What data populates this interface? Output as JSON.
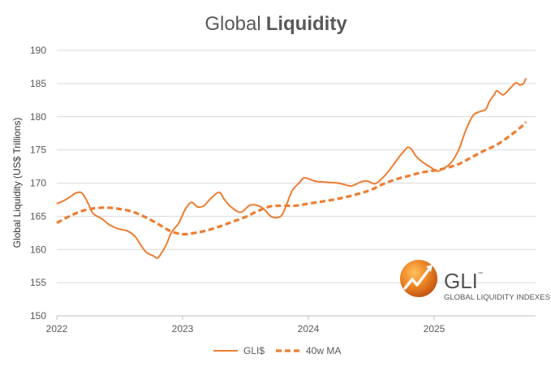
{
  "chart_data": {
    "type": "line",
    "title": {
      "regular": "Global",
      "bold": "Liquidity"
    },
    "ylabel": "Global Liquidity (US$ Trillions)",
    "xlabel": "",
    "ylim": [
      150,
      190
    ],
    "yticks": [
      150,
      155,
      160,
      165,
      170,
      175,
      180,
      185,
      190
    ],
    "xlim": [
      2022.0,
      2026.0
    ],
    "xticks": [
      {
        "value": 2022.0,
        "label": "2022"
      },
      {
        "value": 2023.0,
        "label": "2023"
      },
      {
        "value": 2024.0,
        "label": "2024"
      },
      {
        "value": 2025.0,
        "label": "2025"
      }
    ],
    "grid": "horizontal",
    "legend_position": "bottom",
    "series": [
      {
        "name": "GLI$",
        "color": "#ED7D31",
        "style": "solid",
        "points": [
          [
            2022.0,
            166.9
          ],
          [
            2022.06,
            167.4
          ],
          [
            2022.12,
            168.1
          ],
          [
            2022.15,
            168.5
          ],
          [
            2022.2,
            168.5
          ],
          [
            2022.25,
            166.9
          ],
          [
            2022.29,
            165.4
          ],
          [
            2022.36,
            164.6
          ],
          [
            2022.42,
            163.7
          ],
          [
            2022.49,
            163.1
          ],
          [
            2022.56,
            162.8
          ],
          [
            2022.62,
            162.0
          ],
          [
            2022.66,
            160.9
          ],
          [
            2022.71,
            159.6
          ],
          [
            2022.77,
            159.0
          ],
          [
            2022.8,
            158.7
          ],
          [
            2022.83,
            159.4
          ],
          [
            2022.87,
            160.7
          ],
          [
            2022.91,
            162.5
          ],
          [
            2022.97,
            164.0
          ],
          [
            2023.02,
            166.0
          ],
          [
            2023.07,
            167.1
          ],
          [
            2023.12,
            166.4
          ],
          [
            2023.17,
            166.6
          ],
          [
            2023.22,
            167.6
          ],
          [
            2023.29,
            168.6
          ],
          [
            2023.33,
            167.6
          ],
          [
            2023.38,
            166.5
          ],
          [
            2023.46,
            165.6
          ],
          [
            2023.53,
            166.6
          ],
          [
            2023.58,
            166.7
          ],
          [
            2023.64,
            166.2
          ],
          [
            2023.71,
            164.9
          ],
          [
            2023.78,
            165.0
          ],
          [
            2023.82,
            166.4
          ],
          [
            2023.87,
            168.8
          ],
          [
            2023.93,
            170.1
          ],
          [
            2023.97,
            170.8
          ],
          [
            2024.05,
            170.3
          ],
          [
            2024.1,
            170.2
          ],
          [
            2024.17,
            170.1
          ],
          [
            2024.24,
            170.0
          ],
          [
            2024.3,
            169.7
          ],
          [
            2024.35,
            169.6
          ],
          [
            2024.42,
            170.2
          ],
          [
            2024.47,
            170.3
          ],
          [
            2024.53,
            169.9
          ],
          [
            2024.58,
            170.6
          ],
          [
            2024.62,
            171.4
          ],
          [
            2024.67,
            172.6
          ],
          [
            2024.72,
            173.9
          ],
          [
            2024.76,
            174.8
          ],
          [
            2024.79,
            175.4
          ],
          [
            2024.82,
            175.1
          ],
          [
            2024.85,
            174.2
          ],
          [
            2024.88,
            173.6
          ],
          [
            2024.92,
            173.0
          ],
          [
            2024.97,
            172.4
          ],
          [
            2025.03,
            171.8
          ],
          [
            2025.09,
            172.4
          ],
          [
            2025.14,
            173.2
          ],
          [
            2025.2,
            175.2
          ],
          [
            2025.25,
            177.9
          ],
          [
            2025.31,
            180.2
          ],
          [
            2025.37,
            180.8
          ],
          [
            2025.41,
            181.1
          ],
          [
            2025.44,
            182.3
          ],
          [
            2025.48,
            183.4
          ],
          [
            2025.5,
            183.9
          ],
          [
            2025.55,
            183.3
          ],
          [
            2025.6,
            184.2
          ],
          [
            2025.65,
            185.1
          ],
          [
            2025.68,
            184.8
          ],
          [
            2025.71,
            185.0
          ],
          [
            2025.73,
            185.8
          ]
        ]
      },
      {
        "name": "40w MA",
        "color": "#ED7D31",
        "style": "dashed",
        "points": [
          [
            2022.0,
            164.0
          ],
          [
            2022.1,
            165.0
          ],
          [
            2022.2,
            165.8
          ],
          [
            2022.3,
            166.2
          ],
          [
            2022.4,
            166.3
          ],
          [
            2022.5,
            166.1
          ],
          [
            2022.6,
            165.7
          ],
          [
            2022.7,
            164.9
          ],
          [
            2022.8,
            163.9
          ],
          [
            2022.9,
            162.8
          ],
          [
            2023.0,
            162.3
          ],
          [
            2023.1,
            162.5
          ],
          [
            2023.2,
            162.9
          ],
          [
            2023.3,
            163.5
          ],
          [
            2023.4,
            164.2
          ],
          [
            2023.5,
            164.9
          ],
          [
            2023.6,
            165.8
          ],
          [
            2023.7,
            166.5
          ],
          [
            2023.8,
            166.6
          ],
          [
            2023.9,
            166.6
          ],
          [
            2024.0,
            166.9
          ],
          [
            2024.1,
            167.2
          ],
          [
            2024.2,
            167.5
          ],
          [
            2024.3,
            167.9
          ],
          [
            2024.4,
            168.4
          ],
          [
            2024.5,
            169.0
          ],
          [
            2024.6,
            169.9
          ],
          [
            2024.7,
            170.6
          ],
          [
            2024.8,
            171.1
          ],
          [
            2024.9,
            171.6
          ],
          [
            2025.0,
            171.9
          ],
          [
            2025.1,
            172.3
          ],
          [
            2025.2,
            172.9
          ],
          [
            2025.3,
            173.9
          ],
          [
            2025.4,
            174.9
          ],
          [
            2025.5,
            175.8
          ],
          [
            2025.6,
            177.1
          ],
          [
            2025.7,
            178.6
          ],
          [
            2025.73,
            179.2
          ]
        ]
      }
    ]
  },
  "logo": {
    "text": "GLI",
    "trademark": "™",
    "subtitle": "GLOBAL LIQUIDITY INDEXES",
    "orange": "#E8731A",
    "dark_orange": "#B84A0A"
  }
}
